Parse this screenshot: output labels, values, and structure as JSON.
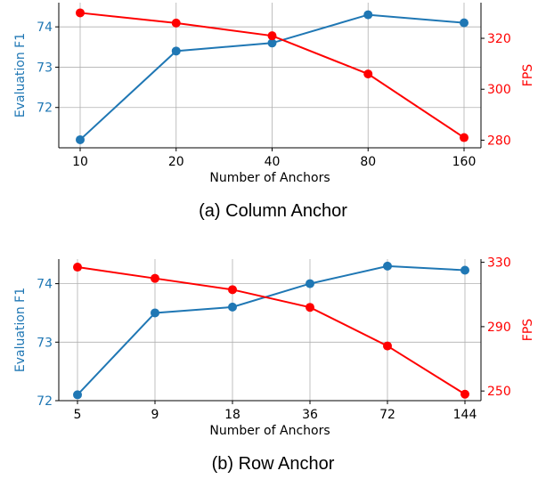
{
  "colors": {
    "f1": "#1f77b4",
    "fps": "#ff0000",
    "grid": "#b0b0b0",
    "axis": "#000000"
  },
  "chart_data": [
    {
      "type": "line",
      "caption": "(a) Column Anchor",
      "xlabel": "Number of Anchors",
      "categories": [
        "10",
        "20",
        "40",
        "80",
        "160"
      ],
      "grid": true,
      "series": [
        {
          "axis": "left",
          "values": [
            71.2,
            73.4,
            73.6,
            74.3,
            74.1
          ]
        },
        {
          "axis": "right",
          "values": [
            330,
            326,
            321,
            306,
            281
          ]
        }
      ],
      "y_left": {
        "label": "Evaluation F1",
        "ticks": [
          "72",
          "73",
          "74"
        ],
        "tick_values": [
          72,
          73,
          74
        ],
        "range": [
          71.0,
          74.6
        ]
      },
      "y_right": {
        "label": "FPS",
        "ticks": [
          "280",
          "300",
          "320"
        ],
        "tick_values": [
          280,
          300,
          320
        ],
        "range": [
          277,
          334
        ]
      }
    },
    {
      "type": "line",
      "caption": "(b) Row Anchor",
      "xlabel": "Number of Anchors",
      "categories": [
        "5",
        "9",
        "18",
        "36",
        "72",
        "144"
      ],
      "grid": true,
      "series": [
        {
          "axis": "left",
          "values": [
            72.1,
            73.5,
            73.6,
            74.0,
            74.3,
            74.23
          ]
        },
        {
          "axis": "right",
          "values": [
            327,
            320,
            313,
            302,
            278,
            248
          ]
        }
      ],
      "y_left": {
        "label": "Evaluation F1",
        "ticks": [
          "72",
          "73",
          "74"
        ],
        "tick_values": [
          72,
          73,
          74
        ],
        "range": [
          72.0,
          74.42
        ]
      },
      "y_right": {
        "label": "FPS",
        "ticks": [
          "250",
          "290",
          "330"
        ],
        "tick_values": [
          250,
          290,
          330
        ],
        "range": [
          244,
          332
        ]
      }
    }
  ]
}
